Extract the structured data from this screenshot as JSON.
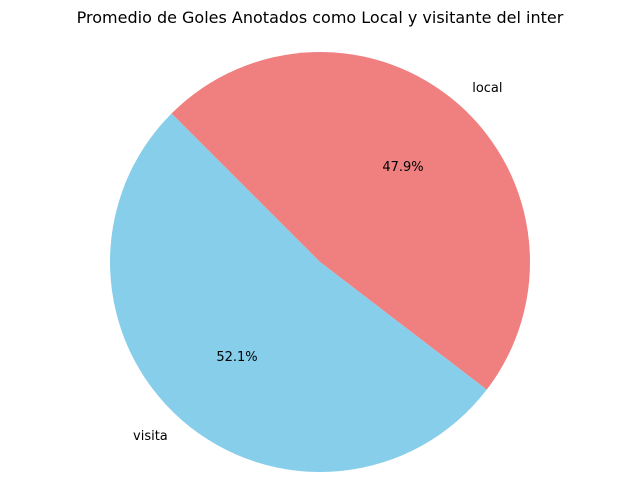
{
  "chart_data": {
    "type": "pie",
    "title": "Promedio de Goles Anotados como Local y visitante del inter",
    "labels": [
      "local",
      "visita"
    ],
    "values": [
      47.9,
      52.1
    ],
    "percent_labels": [
      "47.9%",
      "52.1%"
    ],
    "colors": [
      "#f08080",
      "#87ceeb"
    ],
    "start_angle_deg": 135,
    "direction": "clockwise",
    "legend": "none"
  }
}
